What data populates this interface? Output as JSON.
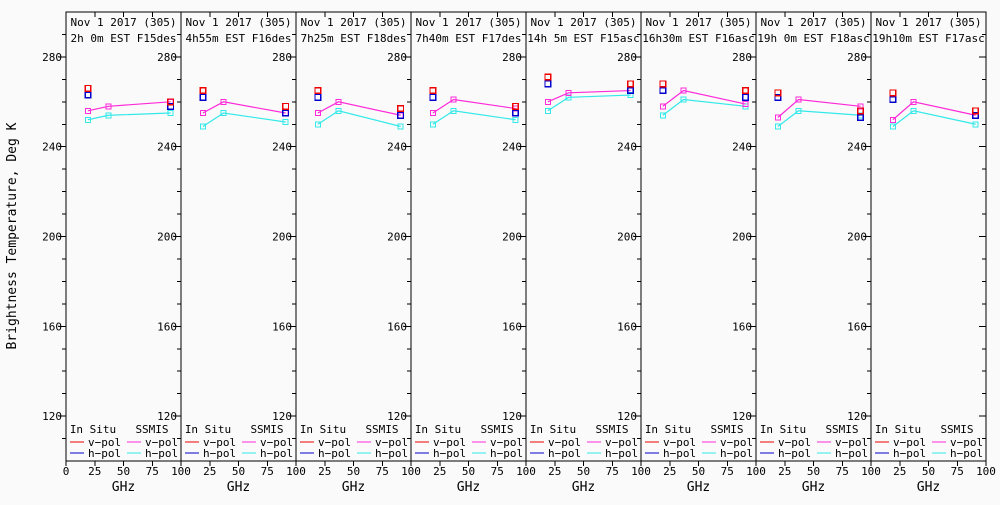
{
  "figure": {
    "ylabel": "Brightness Temperature, Deg K",
    "xlabel": "GHz",
    "background": "#fafafa",
    "axis_color": "#000000"
  },
  "legend": {
    "col1_header": "In Situ",
    "col2_header": "SSMIS",
    "vpol_label": "v−pol",
    "hpol_label": "h−pol"
  },
  "colors": {
    "insitu_vpol": "#ee0000",
    "insitu_hpol": "#0000cc",
    "ssmis_vpol": "#ff2ad9",
    "ssmis_hpol": "#33e8e8"
  },
  "chart_data": {
    "type": "line",
    "x": [
      19,
      37,
      91
    ],
    "insitu_x": [
      19,
      91
    ],
    "xlabel": "GHz",
    "ylabel": "Brightness Temperature, Deg K",
    "xlim": [
      0,
      100
    ],
    "ylim": [
      100,
      300
    ],
    "xticks": [
      0,
      25,
      50,
      75,
      100
    ],
    "yticks": [
      120,
      160,
      200,
      240,
      280
    ],
    "y_minor_step": 10,
    "grid": false,
    "legend_position": "bottom-inside-each-panel",
    "panels": [
      {
        "title_line1": "Nov 1 2017 (305)",
        "title_line2": "2h 0m EST F15des",
        "ssmis_vpol": [
          256,
          258,
          260
        ],
        "ssmis_hpol": [
          252,
          254,
          255
        ],
        "insitu_vpol": [
          266,
          260
        ],
        "insitu_hpol": [
          263,
          258
        ]
      },
      {
        "title_line1": "Nov 1 2017 (305)",
        "title_line2": "4h55m EST F16des",
        "ssmis_vpol": [
          255,
          260,
          255
        ],
        "ssmis_hpol": [
          249,
          255,
          251
        ],
        "insitu_vpol": [
          265,
          258
        ],
        "insitu_hpol": [
          262,
          255
        ]
      },
      {
        "title_line1": "Nov 1 2017 (305)",
        "title_line2": "7h25m EST F18des",
        "ssmis_vpol": [
          255,
          260,
          254
        ],
        "ssmis_hpol": [
          250,
          256,
          249
        ],
        "insitu_vpol": [
          265,
          257
        ],
        "insitu_hpol": [
          262,
          254
        ]
      },
      {
        "title_line1": "Nov 1 2017 (305)",
        "title_line2": "7h40m EST F17des",
        "ssmis_vpol": [
          255,
          261,
          257
        ],
        "ssmis_hpol": [
          250,
          256,
          252
        ],
        "insitu_vpol": [
          265,
          258
        ],
        "insitu_hpol": [
          262,
          255
        ]
      },
      {
        "title_line1": "Nov 1 2017 (305)",
        "title_line2": "14h 5m EST F15asc",
        "ssmis_vpol": [
          260,
          264,
          265
        ],
        "ssmis_hpol": [
          256,
          262,
          263
        ],
        "insitu_vpol": [
          271,
          268
        ],
        "insitu_hpol": [
          268,
          265
        ]
      },
      {
        "title_line1": "Nov 1 2017 (305)",
        "title_line2": "16h30m EST F16asc",
        "ssmis_vpol": [
          258,
          265,
          259
        ],
        "ssmis_hpol": [
          254,
          261,
          258
        ],
        "insitu_vpol": [
          268,
          265
        ],
        "insitu_hpol": [
          265,
          262
        ]
      },
      {
        "title_line1": "Nov 1 2017 (305)",
        "title_line2": "19h 0m EST F18asc",
        "ssmis_vpol": [
          253,
          261,
          258
        ],
        "ssmis_hpol": [
          249,
          256,
          254
        ],
        "insitu_vpol": [
          264,
          256
        ],
        "insitu_hpol": [
          262,
          253
        ]
      },
      {
        "title_line1": "Nov 1 2017 (305)",
        "title_line2": "19h10m EST F17asc",
        "ssmis_vpol": [
          252,
          260,
          254
        ],
        "ssmis_hpol": [
          249,
          256,
          250
        ],
        "insitu_vpol": [
          264,
          256
        ],
        "insitu_hpol": [
          261,
          254
        ]
      }
    ]
  }
}
